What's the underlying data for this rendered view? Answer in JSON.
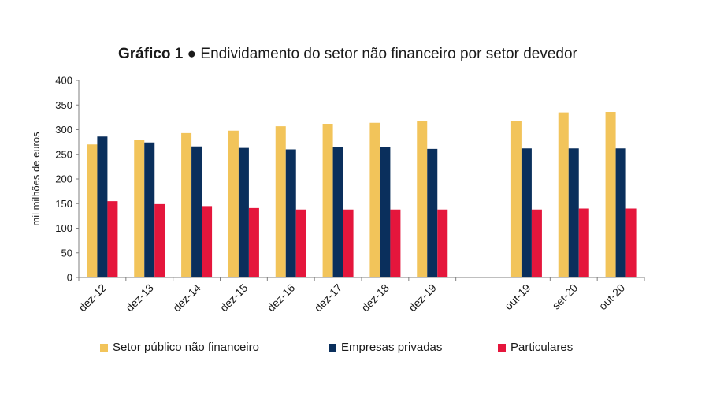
{
  "title": {
    "bold": "Gráfico 1",
    "bullet": "●",
    "text": "Endividamento do setor não financeiro por setor devedor"
  },
  "chart_data": {
    "type": "bar",
    "categories": [
      "dez-12",
      "dez-13",
      "dez-14",
      "dez-15",
      "dez-16",
      "dez-17",
      "dez-18",
      "dez-19",
      "",
      "out-19",
      "set-20",
      "out-20"
    ],
    "series": [
      {
        "name": "Setor público não financeiro",
        "color": "#F2C45A",
        "values": [
          270,
          280,
          293,
          298,
          307,
          312,
          314,
          317,
          null,
          318,
          335,
          336
        ]
      },
      {
        "name": "Empresas privadas",
        "color": "#0A2F5C",
        "values": [
          286,
          274,
          266,
          263,
          260,
          264,
          264,
          261,
          null,
          262,
          262,
          262
        ]
      },
      {
        "name": "Particulares",
        "color": "#E5163C",
        "values": [
          155,
          149,
          145,
          141,
          138,
          138,
          138,
          138,
          null,
          138,
          140,
          140
        ]
      }
    ],
    "ylabel": "mil milhões de euros",
    "xlabel": "",
    "ylim": [
      0,
      400
    ],
    "yticks": [
      0,
      50,
      100,
      150,
      200,
      250,
      300,
      350,
      400
    ],
    "grid": false,
    "legend_position": "bottom"
  }
}
